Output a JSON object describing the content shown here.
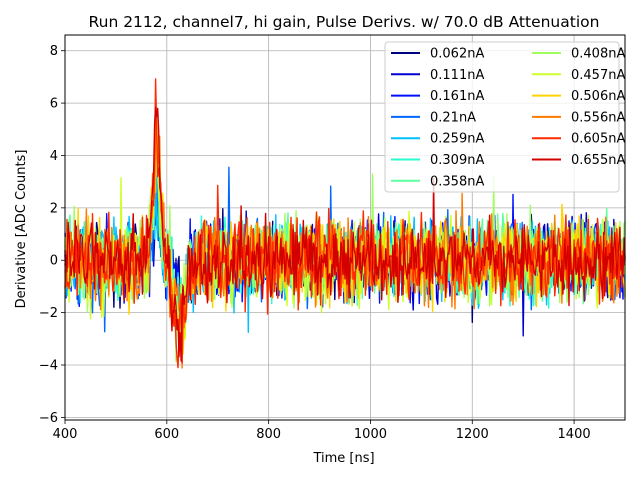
{
  "chart_data": {
    "type": "line",
    "title": "Run 2112, channel7, hi gain, Pulse Derivs. w/ 70.0 dB Attenuation",
    "xlabel": "Time [ns]",
    "ylabel": "Derivative [ADC Counts]",
    "xlim": [
      400,
      1500
    ],
    "ylim": [
      -6.1,
      8.6
    ],
    "grid": true,
    "legend_location": "top-right",
    "legend_columns": 2,
    "x_ticks": [
      400,
      600,
      800,
      1000,
      1200,
      1400
    ],
    "x_tick_labels": [
      "400",
      "600",
      "800",
      "1000",
      "1200",
      "1400"
    ],
    "y_ticks": [
      -6,
      -4,
      -2,
      0,
      2,
      4,
      6,
      8
    ],
    "y_tick_labels": [
      "−6",
      "−4",
      "−2",
      "0",
      "2",
      "4",
      "6",
      "8"
    ],
    "x_sampling": {
      "start": 400,
      "stop": 1500,
      "step": 2
    },
    "series": [
      {
        "name": "0.062nA",
        "color": "#00007f",
        "noise_amplitude": 1.5,
        "pulse_peak": 2.6,
        "pulse_trough": -1.5
      },
      {
        "name": "0.111nA",
        "color": "#0000d0",
        "noise_amplitude": 1.6,
        "pulse_peak": 3.0,
        "pulse_trough": -1.8
      },
      {
        "name": "0.161nA",
        "color": "#0010ff",
        "noise_amplitude": 1.6,
        "pulse_peak": 3.2,
        "pulse_trough": -2.0
      },
      {
        "name": "0.21nA",
        "color": "#0068ff",
        "noise_amplitude": 1.6,
        "pulse_peak": 3.5,
        "pulse_trough": -2.2
      },
      {
        "name": "0.259nA",
        "color": "#00c0ff",
        "noise_amplitude": 1.6,
        "pulse_peak": 3.7,
        "pulse_trough": -2.4
      },
      {
        "name": "0.309nA",
        "color": "#29ffce",
        "noise_amplitude": 1.6,
        "pulse_peak": 4.0,
        "pulse_trough": -2.6
      },
      {
        "name": "0.358nA",
        "color": "#5effa0",
        "noise_amplitude": 1.6,
        "pulse_peak": 4.3,
        "pulse_trough": -2.8
      },
      {
        "name": "0.408nA",
        "color": "#a0ff5e",
        "noise_amplitude": 1.7,
        "pulse_peak": 4.6,
        "pulse_trough": -3.0
      },
      {
        "name": "0.457nA",
        "color": "#ceff29",
        "noise_amplitude": 1.7,
        "pulse_peak": 4.9,
        "pulse_trough": -3.2
      },
      {
        "name": "0.506nA",
        "color": "#ffd300",
        "noise_amplitude": 1.7,
        "pulse_peak": 5.2,
        "pulse_trough": -3.4
      },
      {
        "name": "0.556nA",
        "color": "#ff7a00",
        "noise_amplitude": 1.7,
        "pulse_peak": 5.6,
        "pulse_trough": -3.6
      },
      {
        "name": "0.605nA",
        "color": "#ff2a00",
        "noise_amplitude": 1.7,
        "pulse_peak": 6.2,
        "pulse_trough": -3.9
      },
      {
        "name": "0.655nA",
        "color": "#d40000",
        "noise_amplitude": 1.5,
        "pulse_peak": 7.2,
        "pulse_trough": -3.5
      }
    ],
    "pulse_shape": {
      "rise_center": 580,
      "rise_width": 10,
      "trough_center": 625,
      "trough_width": 16
    }
  }
}
